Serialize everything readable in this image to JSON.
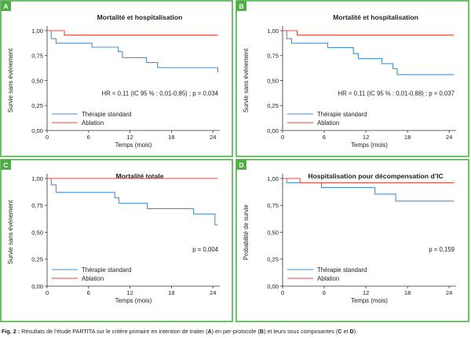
{
  "colors": {
    "frame": "#4fae48",
    "standard": "#4a8fcf",
    "ablation": "#e8473e",
    "axis": "#333333"
  },
  "caption": {
    "prefix": "Fig. 2 :",
    "t1": " Résultats de l’étude PARTITA sur le critère primaire en intention de traiter (",
    "b1": "A",
    "t2": ") en per-protocole (",
    "b2": "B",
    "t3": ") et leurs sous composantes (",
    "b3": "C",
    "t4": " et ",
    "b4": "D",
    "t5": ")."
  },
  "chart_data": [
    {
      "panel": "A",
      "type": "line",
      "step": true,
      "title": "Mortalité et hospitalisation",
      "xlabel": "Temps (mois)",
      "ylabel": "Survie sans événement",
      "xlim": [
        0,
        25
      ],
      "ylim": [
        0,
        1
      ],
      "xticks": [
        "0",
        "6",
        "12",
        "18",
        "24"
      ],
      "yticks": [
        "0,00",
        "0,25",
        "0,50",
        "0,75",
        "1,00"
      ],
      "annotation": "HR = 0,11 (IC 95 % : 0,01-0,85) ; p = 0,034",
      "legend": "lower-left",
      "series": [
        {
          "name": "Thérapie standard",
          "color": "#4a8fcf",
          "x": [
            0,
            0.6,
            1.3,
            6.5,
            10.3,
            10.9,
            14.4,
            16.0,
            24.7
          ],
          "y": [
            1.0,
            0.92,
            0.875,
            0.835,
            0.79,
            0.73,
            0.68,
            0.63,
            0.58
          ]
        },
        {
          "name": "Ablation",
          "color": "#e8473e",
          "x": [
            0,
            2.5,
            24.7
          ],
          "y": [
            1.0,
            0.955,
            0.955
          ]
        }
      ]
    },
    {
      "panel": "B",
      "type": "line",
      "step": true,
      "title": "Mortalité et hospitalisation",
      "xlabel": "Temps (mois)",
      "ylabel": "Survie sans événement",
      "xlim": [
        0,
        25
      ],
      "ylim": [
        0,
        1
      ],
      "xticks": [
        "0",
        "6",
        "12",
        "18",
        "24"
      ],
      "yticks": [
        "0,00",
        "0,25",
        "0,50",
        "0,75",
        "1,00"
      ],
      "annotation": "HR = 0,11 (IC 95 % : 0,01-0,88) ; p = 0,037",
      "legend": "lower-left",
      "series": [
        {
          "name": "Thérapie standard",
          "color": "#4a8fcf",
          "x": [
            0,
            0.6,
            1.3,
            6.5,
            10.2,
            10.9,
            14.3,
            15.9,
            16.5,
            24.7
          ],
          "y": [
            1.0,
            0.92,
            0.875,
            0.83,
            0.77,
            0.72,
            0.67,
            0.62,
            0.56,
            0.56
          ]
        },
        {
          "name": "Ablation",
          "color": "#e8473e",
          "x": [
            0,
            2.1,
            24.7
          ],
          "y": [
            1.0,
            0.955,
            0.955
          ]
        }
      ]
    },
    {
      "panel": "C",
      "type": "line",
      "step": true,
      "title": "Mortalité totale",
      "xlabel": "Temps (mois)",
      "ylabel": "Survie sans événement",
      "xlim": [
        0,
        25
      ],
      "ylim": [
        0,
        1
      ],
      "xticks": [
        "0",
        "6",
        "12",
        "18",
        "24"
      ],
      "yticks": [
        "0,00",
        "0,25",
        "0,50",
        "0,75",
        "1,00"
      ],
      "annotation": "p = 0,004",
      "legend": "lower-left",
      "series": [
        {
          "name": "Thérapie standard",
          "color": "#4a8fcf",
          "x": [
            0,
            0.6,
            1.3,
            9.8,
            10.4,
            14.5,
            21.2,
            24.3,
            24.7
          ],
          "y": [
            1.0,
            0.94,
            0.87,
            0.82,
            0.77,
            0.72,
            0.67,
            0.57,
            0.57
          ]
        },
        {
          "name": "Ablation",
          "color": "#e8473e",
          "x": [
            0,
            24.7
          ],
          "y": [
            1.0,
            1.0
          ]
        }
      ]
    },
    {
      "panel": "D",
      "type": "line",
      "step": true,
      "title": "Hospitalisation pour décompensation d’IC",
      "xlabel": "Temps (mois)",
      "ylabel": "Probabilité de survie",
      "xlim": [
        0,
        25
      ],
      "ylim": [
        0,
        1
      ],
      "xticks": [
        "0",
        "6",
        "12",
        "18",
        "24"
      ],
      "yticks": [
        "0,00",
        "0,25",
        "0,50",
        "0,75",
        "1,00"
      ],
      "annotation": "p = 0,159",
      "legend": "lower-left",
      "series": [
        {
          "name": "Thérapie standard",
          "color": "#4a8fcf",
          "x": [
            0,
            0.6,
            5.6,
            13.3,
            16.3,
            24.7
          ],
          "y": [
            1.0,
            0.96,
            0.915,
            0.855,
            0.79,
            0.79
          ]
        },
        {
          "name": "Ablation",
          "color": "#e8473e",
          "x": [
            0,
            2.5,
            24.7
          ],
          "y": [
            1.0,
            0.96,
            0.96
          ]
        }
      ]
    }
  ]
}
